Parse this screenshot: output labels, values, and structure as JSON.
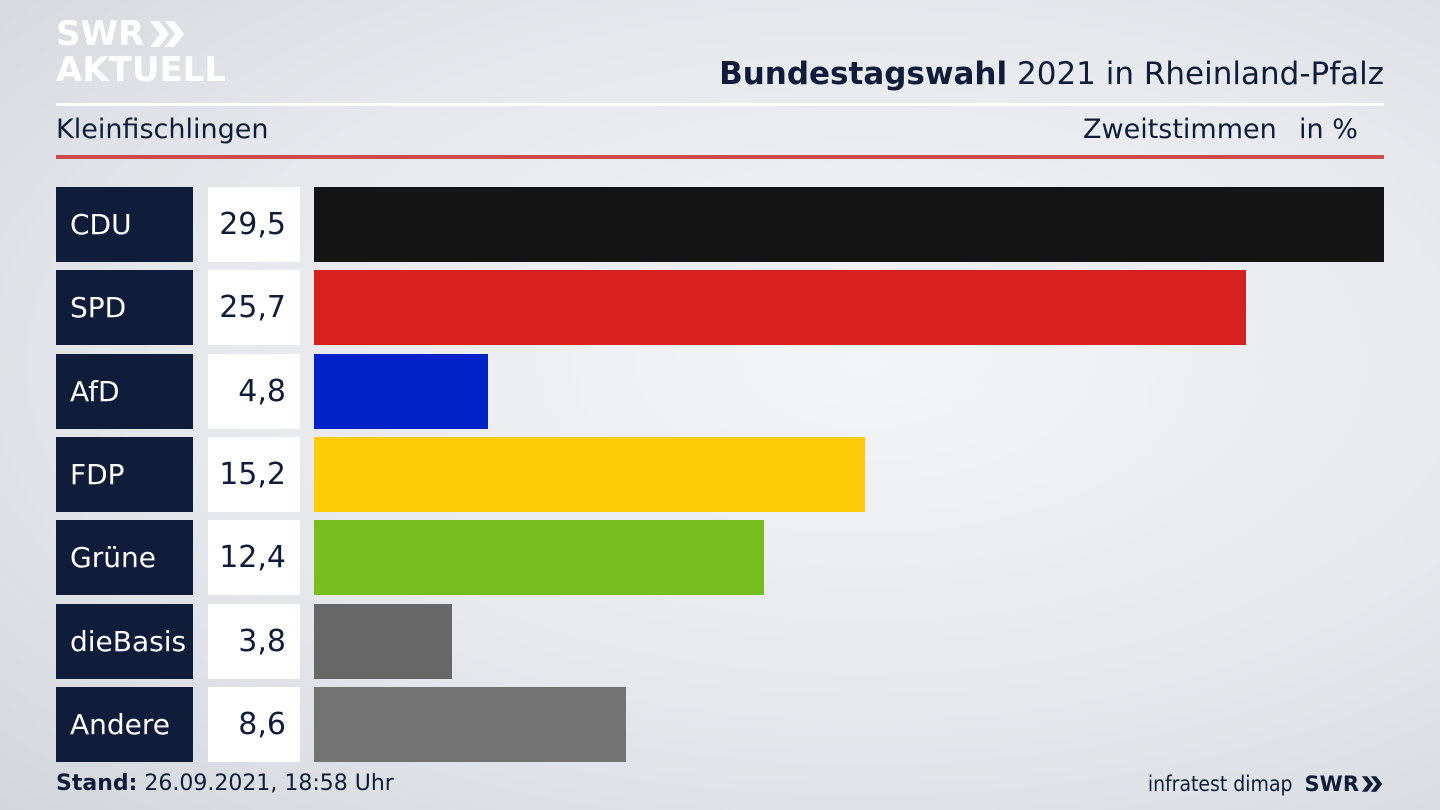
{
  "logo": {
    "line1": "SWR",
    "line2": "AKTUELL",
    "chevrons": "»"
  },
  "header": {
    "title_bold": "Bundestagswahl",
    "title_rest": "2021 in Rheinland-Pfalz",
    "region": "Kleinfischlingen",
    "vote_type": "Zweitstimmen",
    "unit": "in %"
  },
  "chart_data": {
    "type": "bar",
    "orientation": "horizontal",
    "categories": [
      "CDU",
      "SPD",
      "AfD",
      "FDP",
      "Grüne",
      "dieBasis",
      "Andere"
    ],
    "values": [
      29.5,
      25.7,
      4.8,
      15.2,
      12.4,
      3.8,
      8.6
    ],
    "value_labels": [
      "29,5",
      "25,7",
      "4,8",
      "15,2",
      "12,4",
      "3,8",
      "8,6"
    ],
    "colors": [
      "#141414",
      "#d72020",
      "#0022c8",
      "#ffcc0a",
      "#78bd1e",
      "#676767",
      "#737373"
    ],
    "xlim": [
      0,
      29.5
    ],
    "unit": "in %"
  },
  "footer": {
    "stand_label": "Stand:",
    "stand_value": "26.09.2021, 18:58 Uhr",
    "source": "infratest dimap",
    "logo_text": "SWR"
  }
}
